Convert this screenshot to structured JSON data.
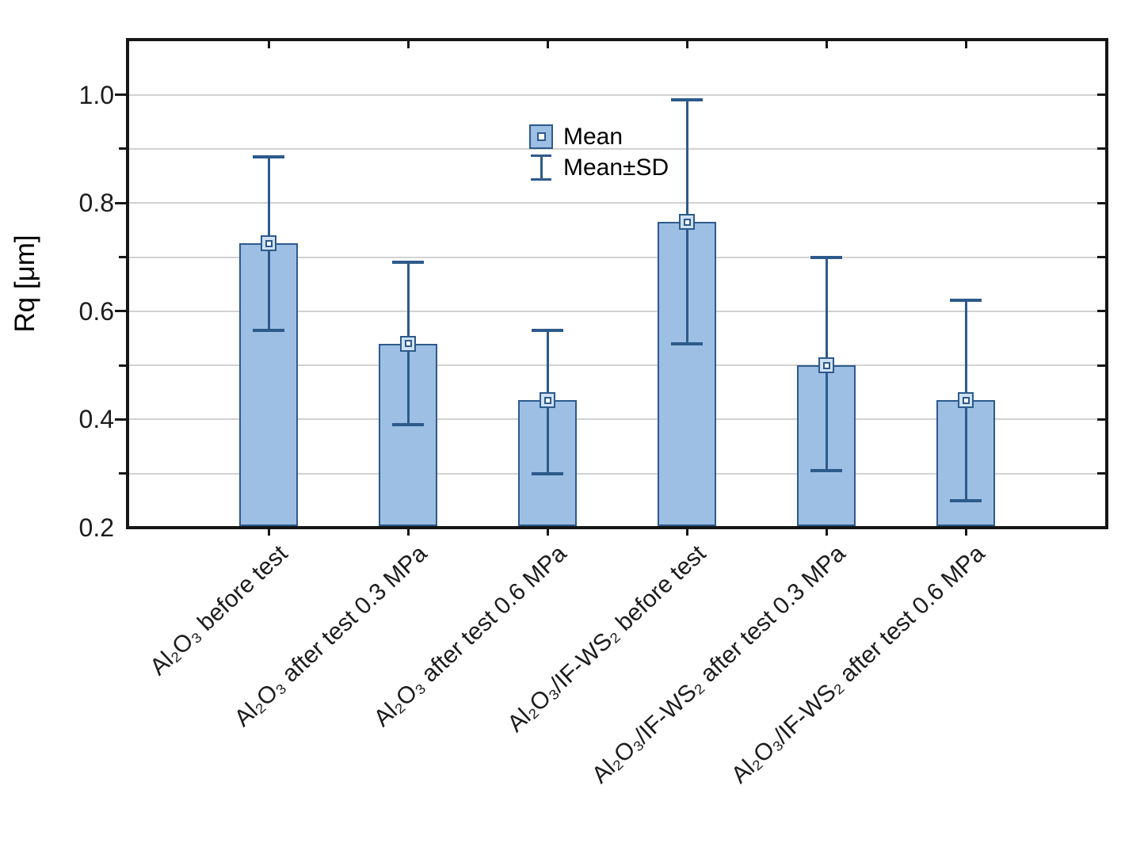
{
  "figure": {
    "y_axis_title": "Rq [μm]"
  },
  "legend": {
    "mean_label": "Mean",
    "sd_label": "Mean±SD"
  },
  "colors": {
    "bar_fill": "#9dbfe4",
    "bar_border": "#2d5a8b",
    "error_color": "#2d5a8b",
    "marker_fill": "#cfe1f3",
    "marker_inner_fill": "#ffffff",
    "grid_color": "#d2d2d2",
    "axis_color": "#161616",
    "text_color": "#1c1c1c",
    "background": "#ffffff"
  },
  "chart_data": {
    "type": "bar",
    "title": "",
    "xlabel": "",
    "ylabel": "Rq [μm]",
    "ylim": [
      0.2,
      1.105
    ],
    "ytick_labeled_values": [
      0.2,
      0.4,
      0.6,
      0.8,
      1.0
    ],
    "minor_tick_step": 0.1,
    "grid": true,
    "grid_interval": 0.1,
    "legend_position": "top-center-inside",
    "categories": [
      "Al₂O₃ before test",
      "Al₂O₃ after test 0.3 MPa",
      "Al₂O₃ after test 0.6 MPa",
      "Al₂O₃/IF-WS₂ before test",
      "Al₂O₃/IF-WS₂ after test 0.3 MPa",
      "Al₂O₃/IF-WS₂ after test 0.6 MPa"
    ],
    "series": [
      {
        "name": "Mean",
        "values": [
          0.725,
          0.54,
          0.435,
          0.765,
          0.5,
          0.435
        ]
      }
    ],
    "error_bars": {
      "name": "Mean±SD",
      "mean_minus_sd": [
        0.565,
        0.39,
        0.3,
        0.54,
        0.305,
        0.25
      ],
      "mean_plus_sd": [
        0.885,
        0.69,
        0.565,
        0.99,
        0.7,
        0.62
      ]
    }
  }
}
